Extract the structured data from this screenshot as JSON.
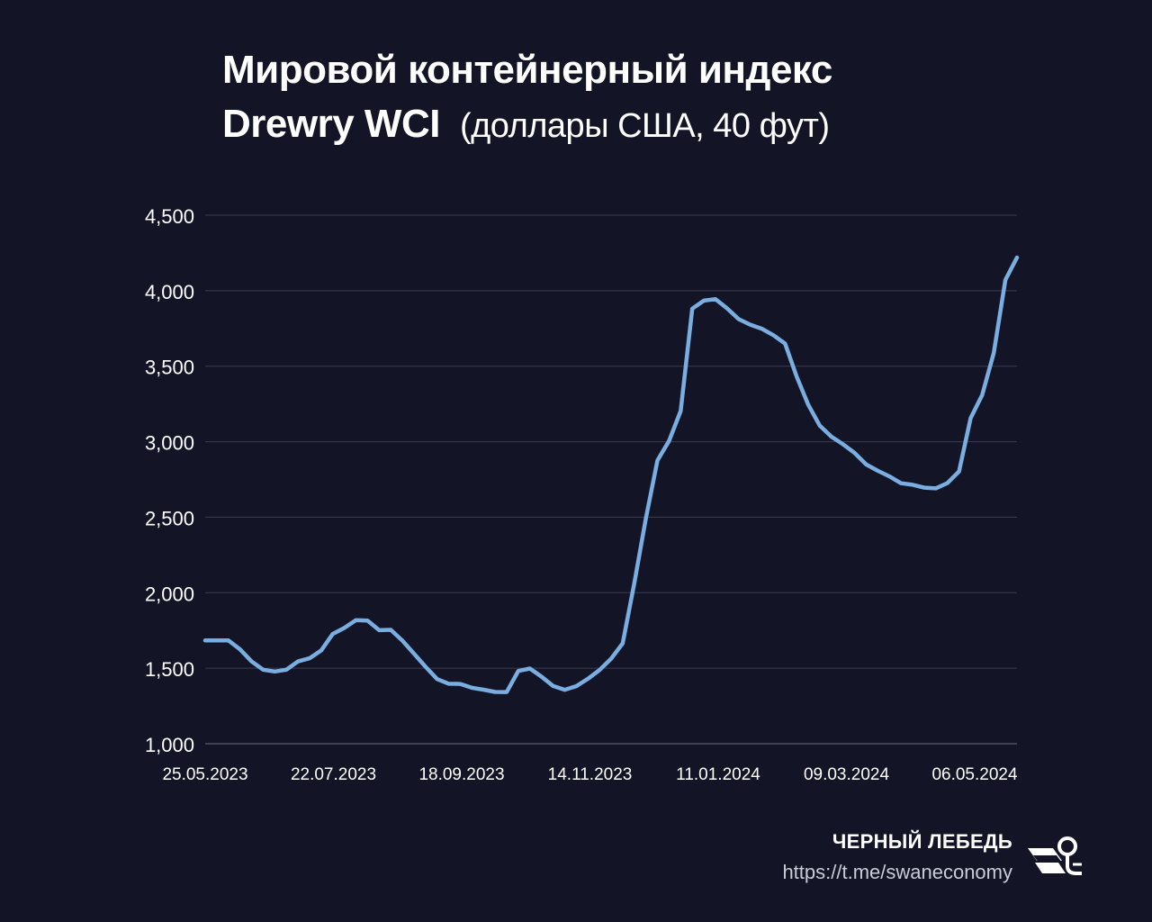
{
  "title": {
    "line1": "Мировой контейнерный индекс",
    "line2_main": "Drewry WCI",
    "line2_sub": "(доллары США, 40 фут)"
  },
  "brand": {
    "name": "ЧЕРНЫЙ ЛЕБЕДЬ",
    "url": "https://t.me/swaneconomy",
    "logo_icon": "swan-logo-icon"
  },
  "colors": {
    "background": "#131526",
    "line": "#7aaee0",
    "grid": "#3a3d52",
    "text": "#ffffff"
  },
  "chart_data": {
    "type": "line",
    "title": "Мировой контейнерный индекс Drewry WCI (доллары США, 40 фут)",
    "ylim": [
      1000,
      4500
    ],
    "yticks": [
      1000,
      1500,
      2000,
      2500,
      3000,
      3500,
      4000,
      4500
    ],
    "ytick_labels": [
      "1,000",
      "1,500",
      "2,000",
      "2,500",
      "3,000",
      "3,500",
      "4,000",
      "4,500"
    ],
    "xtick_labels": [
      "25.05.2023",
      "22.07.2023",
      "18.09.2023",
      "14.11.2023",
      "11.01.2024",
      "09.03.2024",
      "06.05.2024"
    ],
    "grid": true,
    "series": [
      {
        "values": [
          1684,
          1684,
          1684,
          1625,
          1545,
          1490,
          1478,
          1490,
          1545,
          1566,
          1618,
          1727,
          1767,
          1818,
          1815,
          1752,
          1754,
          1683,
          1597,
          1510,
          1428,
          1397,
          1396,
          1370,
          1358,
          1343,
          1342,
          1482,
          1498,
          1444,
          1382,
          1357,
          1381,
          1430,
          1488,
          1563,
          1665,
          2063,
          2494,
          2876,
          3005,
          3203,
          3881,
          3934,
          3944,
          3883,
          3812,
          3775,
          3748,
          3705,
          3650,
          3431,
          3244,
          3106,
          3033,
          2983,
          2925,
          2849,
          2807,
          2770,
          2725,
          2715,
          2696,
          2691,
          2726,
          2803,
          3156,
          3309,
          3588,
          4071,
          4220
        ]
      }
    ]
  }
}
